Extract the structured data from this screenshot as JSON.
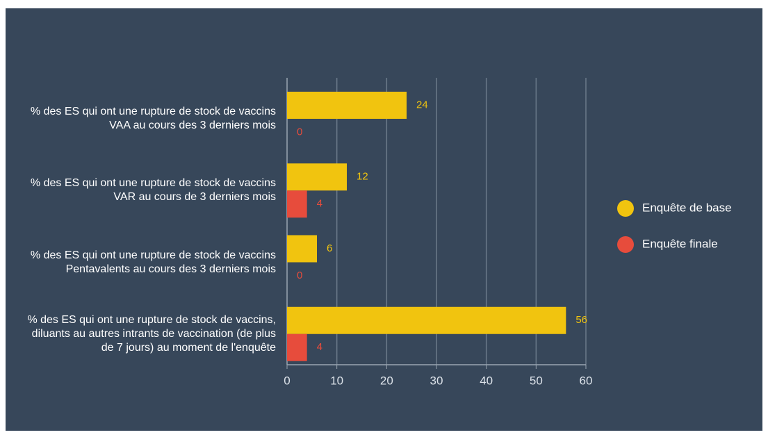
{
  "chart_data": {
    "type": "bar",
    "orientation": "horizontal",
    "categories": [
      "% des ES qui ont une rupture de stock de vaccins VAA au cours des 3 derniers mois",
      "% des ES qui ont une rupture  de stock de vaccins VAR au cours de 3 derniers mois",
      "% des ES qui ont une rupture de stock de vaccins Pentavalents au cours  des 3 derniers mois",
      "% des ES qui ont une rupture de stock de vaccins, diluants au autres intrants de vaccination (de plus de 7 jours) au moment de l'enquête"
    ],
    "series": [
      {
        "name": "Enquête de base",
        "color": "#f1c40f",
        "values": [
          24,
          12,
          6,
          56
        ]
      },
      {
        "name": "Enquête finale",
        "color": "#e74c3c",
        "values": [
          0,
          4,
          0,
          4
        ]
      }
    ],
    "xlim": [
      0,
      60
    ],
    "xticks": [
      0,
      10,
      20,
      30,
      40,
      50,
      60
    ],
    "grid": true,
    "legend": "right"
  }
}
